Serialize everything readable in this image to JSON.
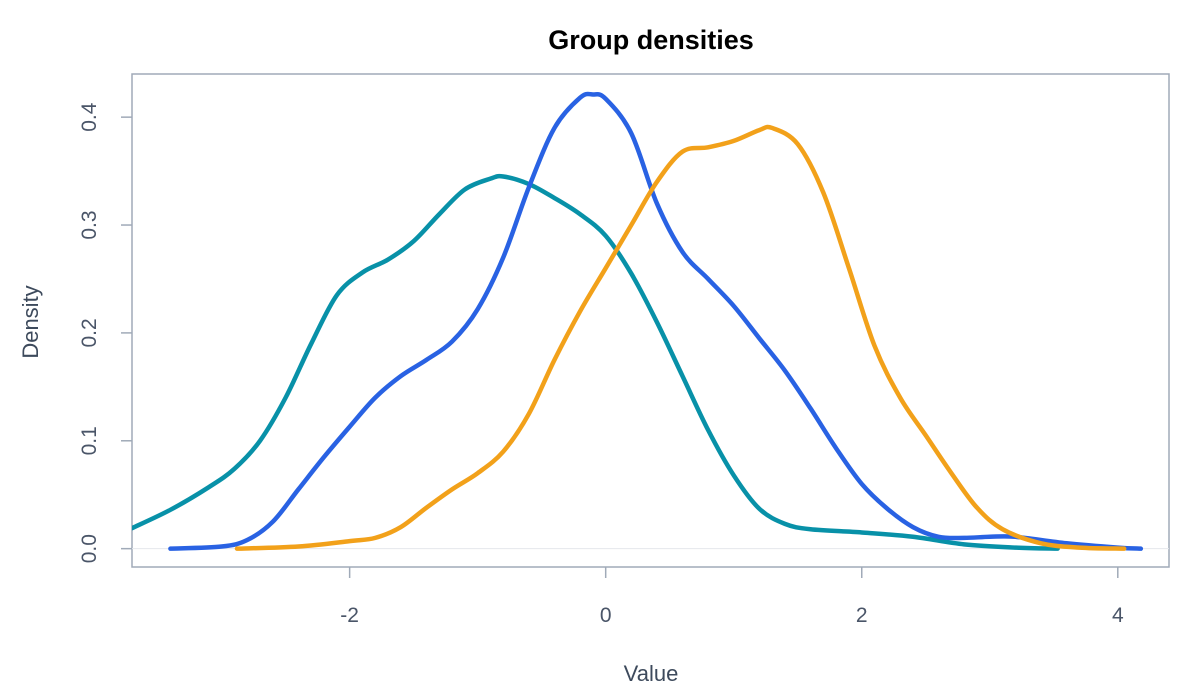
{
  "chart_data": {
    "type": "line",
    "title": "Group densities",
    "xlabel": "Value",
    "ylabel": "Density",
    "xlim": [
      -3.7,
      4.4
    ],
    "ylim": [
      -0.017,
      0.44
    ],
    "x_ticks": [
      "-2",
      "0",
      "2",
      "4"
    ],
    "y_ticks": [
      "0.0",
      "0.1",
      "0.2",
      "0.3",
      "0.4"
    ],
    "grid": false,
    "legend": "none",
    "series": [
      {
        "color": "#0891a8",
        "x": [
          -3.7,
          -3.4,
          -3.1,
          -2.9,
          -2.7,
          -2.5,
          -2.3,
          -2.1,
          -1.9,
          -1.7,
          -1.5,
          -1.3,
          -1.1,
          -0.9,
          -0.8,
          -0.6,
          -0.4,
          -0.2,
          0.0,
          0.2,
          0.4,
          0.6,
          0.8,
          1.0,
          1.2,
          1.4,
          1.6,
          2.0,
          2.4,
          2.8,
          3.2,
          3.53
        ],
        "y": [
          0.019,
          0.036,
          0.057,
          0.074,
          0.1,
          0.14,
          0.19,
          0.235,
          0.256,
          0.268,
          0.285,
          0.31,
          0.333,
          0.343,
          0.345,
          0.338,
          0.325,
          0.31,
          0.29,
          0.255,
          0.21,
          0.16,
          0.11,
          0.068,
          0.037,
          0.023,
          0.018,
          0.015,
          0.011,
          0.004,
          0.001,
          0.0
        ]
      },
      {
        "color": "#2962e3",
        "x": [
          -3.4,
          -3.0,
          -2.8,
          -2.6,
          -2.4,
          -2.2,
          -2.0,
          -1.8,
          -1.6,
          -1.4,
          -1.2,
          -1.0,
          -0.8,
          -0.6,
          -0.4,
          -0.2,
          -0.1,
          0.0,
          0.2,
          0.4,
          0.6,
          0.8,
          1.0,
          1.2,
          1.4,
          1.6,
          1.8,
          2.0,
          2.2,
          2.4,
          2.6,
          2.8,
          3.0,
          3.2,
          3.6,
          4.0,
          4.18
        ],
        "y": [
          0.0,
          0.002,
          0.008,
          0.025,
          0.055,
          0.085,
          0.113,
          0.14,
          0.16,
          0.175,
          0.192,
          0.222,
          0.27,
          0.335,
          0.39,
          0.418,
          0.421,
          0.417,
          0.385,
          0.32,
          0.275,
          0.25,
          0.225,
          0.195,
          0.165,
          0.13,
          0.093,
          0.06,
          0.037,
          0.02,
          0.011,
          0.01,
          0.011,
          0.011,
          0.005,
          0.001,
          0.0
        ]
      },
      {
        "color": "#f2a11a",
        "x": [
          -2.88,
          -2.4,
          -2.0,
          -1.8,
          -1.6,
          -1.4,
          -1.2,
          -1.0,
          -0.8,
          -0.6,
          -0.4,
          -0.2,
          0.0,
          0.2,
          0.4,
          0.6,
          0.8,
          1.0,
          1.2,
          1.3,
          1.5,
          1.7,
          1.9,
          2.1,
          2.3,
          2.5,
          2.7,
          2.9,
          3.1,
          3.4,
          3.7,
          4.05
        ],
        "y": [
          0.0,
          0.002,
          0.007,
          0.01,
          0.02,
          0.038,
          0.055,
          0.07,
          0.09,
          0.125,
          0.175,
          0.22,
          0.26,
          0.3,
          0.34,
          0.368,
          0.372,
          0.378,
          0.388,
          0.39,
          0.375,
          0.33,
          0.26,
          0.188,
          0.14,
          0.105,
          0.07,
          0.038,
          0.018,
          0.005,
          0.001,
          0.0
        ]
      }
    ]
  }
}
